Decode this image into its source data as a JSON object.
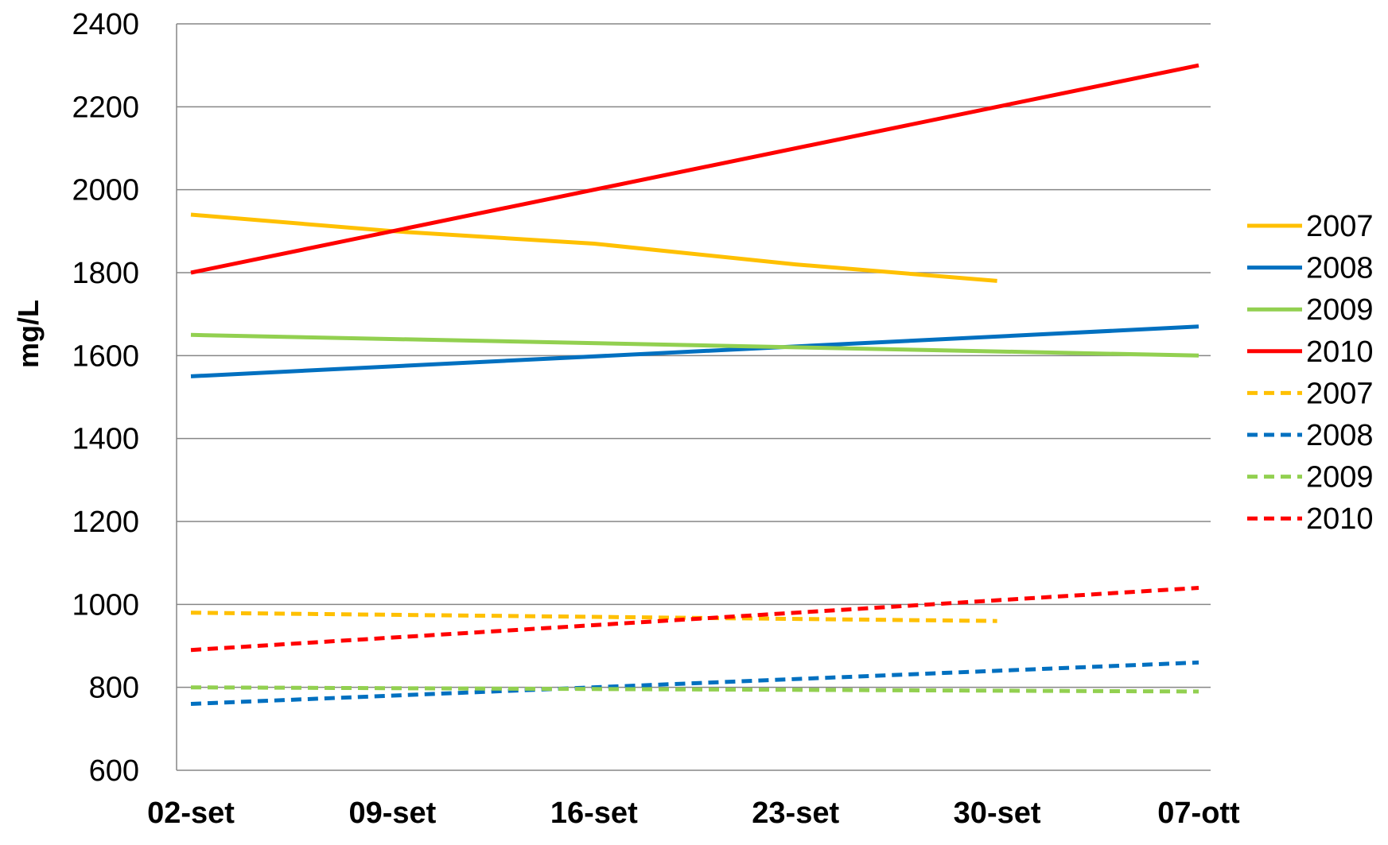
{
  "chart_data": {
    "type": "line",
    "title": "",
    "xlabel": "",
    "ylabel": "mg/L",
    "ylim": [
      600,
      2400
    ],
    "yticks": [
      "600",
      "800",
      "1000",
      "1200",
      "1400",
      "1600",
      "1800",
      "2000",
      "2200",
      "2400"
    ],
    "categories": [
      "02-set",
      "09-set",
      "16-set",
      "23-set",
      "30-set",
      "07-ott"
    ],
    "grid": true,
    "legend_position": "right",
    "series": [
      {
        "name": "2007",
        "color": "#FFC000",
        "dashed": false,
        "points": [
          [
            0,
            1940
          ],
          [
            1,
            1900
          ],
          [
            2,
            1870
          ],
          [
            3,
            1820
          ],
          [
            4,
            1780
          ]
        ]
      },
      {
        "name": "2008",
        "color": "#0070C0",
        "dashed": false,
        "points": [
          [
            0,
            1550
          ],
          [
            5,
            1670
          ]
        ]
      },
      {
        "name": "2009",
        "color": "#92D050",
        "dashed": false,
        "points": [
          [
            0,
            1650
          ],
          [
            5,
            1600
          ]
        ]
      },
      {
        "name": "2010",
        "color": "#FF0000",
        "dashed": false,
        "points": [
          [
            0,
            1800
          ],
          [
            5,
            2300
          ]
        ]
      },
      {
        "name": "2007",
        "color": "#FFC000",
        "dashed": true,
        "points": [
          [
            0,
            980
          ],
          [
            2,
            970
          ],
          [
            4,
            960
          ]
        ]
      },
      {
        "name": "2008",
        "color": "#0070C0",
        "dashed": true,
        "points": [
          [
            0,
            760
          ],
          [
            5,
            860
          ]
        ]
      },
      {
        "name": "2009",
        "color": "#92D050",
        "dashed": true,
        "points": [
          [
            0,
            800
          ],
          [
            5,
            790
          ]
        ]
      },
      {
        "name": "2010",
        "color": "#FF0000",
        "dashed": true,
        "points": [
          [
            0,
            890
          ],
          [
            5,
            1040
          ]
        ]
      }
    ]
  }
}
